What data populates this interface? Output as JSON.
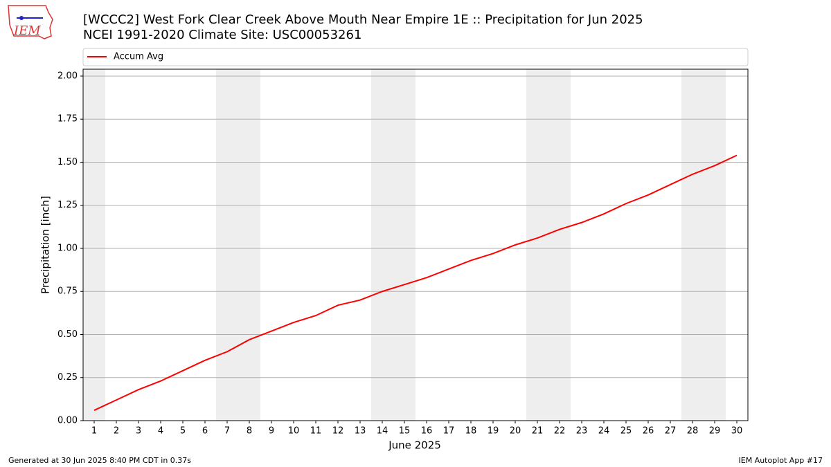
{
  "chart_data": {
    "type": "line",
    "title": "[WCCC2] West Fork Clear Creek Above Mouth Near Empire 1E :: Precipitation for Jun 2025",
    "subtitle": "NCEI 1991-2020 Climate Site: USC00053261",
    "x_label": "June 2025",
    "y_label": "Precipitation [inch]",
    "x": [
      1,
      2,
      3,
      4,
      5,
      6,
      7,
      8,
      9,
      10,
      11,
      12,
      13,
      14,
      15,
      16,
      17,
      18,
      19,
      20,
      21,
      22,
      23,
      24,
      25,
      26,
      27,
      28,
      29,
      30
    ],
    "series": [
      {
        "name": "Accum Avg",
        "color": "#ff0000",
        "values": [
          0.06,
          0.12,
          0.18,
          0.23,
          0.29,
          0.35,
          0.4,
          0.47,
          0.52,
          0.57,
          0.61,
          0.67,
          0.7,
          0.75,
          0.79,
          0.83,
          0.88,
          0.93,
          0.97,
          1.02,
          1.06,
          1.11,
          1.15,
          1.2,
          1.26,
          1.31,
          1.37,
          1.43,
          1.48,
          1.54
        ]
      }
    ],
    "shaded_days": [
      1,
      7,
      8,
      14,
      15,
      21,
      22,
      28,
      29
    ],
    "shade_color": "#eeeeee",
    "xlim": [
      0.5,
      30.5
    ],
    "ylim": [
      0,
      2.04
    ],
    "xticks": [
      1,
      2,
      3,
      4,
      5,
      6,
      7,
      8,
      9,
      10,
      11,
      12,
      13,
      14,
      15,
      16,
      17,
      18,
      19,
      20,
      21,
      22,
      23,
      24,
      25,
      26,
      27,
      28,
      29,
      30
    ],
    "yticks": [
      {
        "value": 0,
        "label": "0.00"
      },
      {
        "value": 0.25,
        "label": "0.25"
      },
      {
        "value": 0.5,
        "label": "0.50"
      },
      {
        "value": 0.75,
        "label": "0.75"
      },
      {
        "value": 1,
        "label": "1.00"
      },
      {
        "value": 1.25,
        "label": "1.25"
      },
      {
        "value": 1.5,
        "label": "1.50"
      },
      {
        "value": 1.75,
        "label": "1.75"
      },
      {
        "value": 2,
        "label": "2.00"
      }
    ],
    "grid": true,
    "legend": "top",
    "footer_left": "Generated at 30 Jun 2025 8:40 PM CDT in 0.37s",
    "footer_right": "IEM Autoplot App #17",
    "logo_text": "IEM"
  }
}
